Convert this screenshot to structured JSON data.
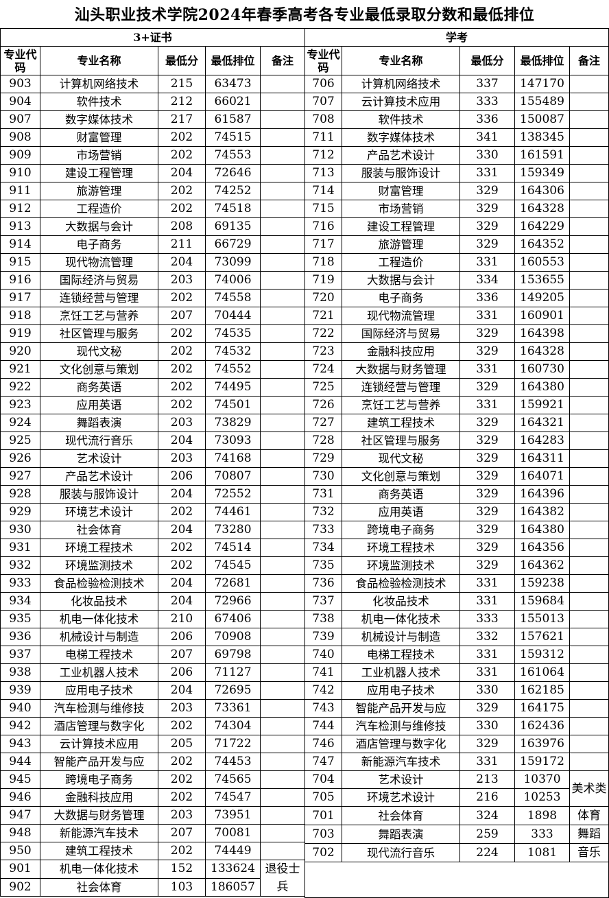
{
  "title": "汕头职业技术学院2024年春季高考各专业最低录取分数和最低排位",
  "columns": {
    "code": "专业代码",
    "name": "专业名称",
    "score": "最低分",
    "rank": "最低排位",
    "note": "备注"
  },
  "left": {
    "section": "3+证书",
    "rows": [
      {
        "code": "903",
        "name": "计算机网络技术",
        "score": "215",
        "rank": "63473"
      },
      {
        "code": "904",
        "name": "软件技术",
        "score": "212",
        "rank": "66021"
      },
      {
        "code": "907",
        "name": "数字媒体技术",
        "score": "217",
        "rank": "61587"
      },
      {
        "code": "908",
        "name": "财富管理",
        "score": "202",
        "rank": "74515"
      },
      {
        "code": "909",
        "name": "市场营销",
        "score": "202",
        "rank": "74553"
      },
      {
        "code": "910",
        "name": "建设工程管理",
        "score": "204",
        "rank": "72646"
      },
      {
        "code": "911",
        "name": "旅游管理",
        "score": "202",
        "rank": "74252"
      },
      {
        "code": "912",
        "name": "工程造价",
        "score": "202",
        "rank": "74518"
      },
      {
        "code": "913",
        "name": "大数据与会计",
        "score": "208",
        "rank": "69135"
      },
      {
        "code": "914",
        "name": "电子商务",
        "score": "211",
        "rank": "66729"
      },
      {
        "code": "915",
        "name": "现代物流管理",
        "score": "204",
        "rank": "73099"
      },
      {
        "code": "916",
        "name": "国际经济与贸易",
        "score": "203",
        "rank": "74006"
      },
      {
        "code": "917",
        "name": "连锁经营与管理",
        "score": "202",
        "rank": "74558"
      },
      {
        "code": "918",
        "name": "烹饪工艺与营养",
        "score": "207",
        "rank": "70444"
      },
      {
        "code": "919",
        "name": "社区管理与服务",
        "score": "202",
        "rank": "74535"
      },
      {
        "code": "920",
        "name": "现代文秘",
        "score": "202",
        "rank": "74532"
      },
      {
        "code": "921",
        "name": "文化创意与策划",
        "score": "202",
        "rank": "74552"
      },
      {
        "code": "922",
        "name": "商务英语",
        "score": "202",
        "rank": "74495"
      },
      {
        "code": "923",
        "name": "应用英语",
        "score": "202",
        "rank": "74501"
      },
      {
        "code": "924",
        "name": "舞蹈表演",
        "score": "203",
        "rank": "73829"
      },
      {
        "code": "925",
        "name": "现代流行音乐",
        "score": "204",
        "rank": "73093"
      },
      {
        "code": "926",
        "name": "艺术设计",
        "score": "203",
        "rank": "74168"
      },
      {
        "code": "927",
        "name": "产品艺术设计",
        "score": "206",
        "rank": "70807"
      },
      {
        "code": "928",
        "name": "服装与服饰设计",
        "score": "204",
        "rank": "72552"
      },
      {
        "code": "929",
        "name": "环境艺术设计",
        "score": "202",
        "rank": "74461"
      },
      {
        "code": "930",
        "name": "社会体育",
        "score": "204",
        "rank": "73280"
      },
      {
        "code": "931",
        "name": "环境工程技术",
        "score": "202",
        "rank": "74514"
      },
      {
        "code": "932",
        "name": "环境监测技术",
        "score": "202",
        "rank": "74545"
      },
      {
        "code": "933",
        "name": "食品检验检测技术",
        "score": "204",
        "rank": "72681"
      },
      {
        "code": "934",
        "name": "化妆品技术",
        "score": "204",
        "rank": "72966"
      },
      {
        "code": "935",
        "name": "机电一体化技术",
        "score": "210",
        "rank": "67406"
      },
      {
        "code": "936",
        "name": "机械设计与制造",
        "score": "206",
        "rank": "70908"
      },
      {
        "code": "937",
        "name": "电梯工程技术",
        "score": "207",
        "rank": "69798"
      },
      {
        "code": "938",
        "name": "工业机器人技术",
        "score": "206",
        "rank": "71127"
      },
      {
        "code": "939",
        "name": "应用电子技术",
        "score": "204",
        "rank": "72695"
      },
      {
        "code": "940",
        "name": "汽车检测与维修技",
        "score": "203",
        "rank": "73361"
      },
      {
        "code": "942",
        "name": "酒店管理与数字化",
        "score": "202",
        "rank": "74304"
      },
      {
        "code": "943",
        "name": "云计算技术应用",
        "score": "205",
        "rank": "71722"
      },
      {
        "code": "944",
        "name": "智能产品开发与应",
        "score": "202",
        "rank": "74453"
      },
      {
        "code": "945",
        "name": "跨境电子商务",
        "score": "202",
        "rank": "74565"
      },
      {
        "code": "946",
        "name": "金融科技应用",
        "score": "202",
        "rank": "74547"
      },
      {
        "code": "947",
        "name": "大数据与财务管理",
        "score": "203",
        "rank": "73951"
      },
      {
        "code": "948",
        "name": "新能源汽车技术",
        "score": "207",
        "rank": "70081"
      },
      {
        "code": "950",
        "name": "建筑工程技术",
        "score": "202",
        "rank": "74449"
      },
      {
        "code": "901",
        "name": "机电一体化技术",
        "score": "152",
        "rank": "133624",
        "note": "退役士兵",
        "note_span": 2
      },
      {
        "code": "902",
        "name": "社会体育",
        "score": "103",
        "rank": "186057"
      }
    ]
  },
  "right": {
    "section": "学考",
    "rows": [
      {
        "code": "706",
        "name": "计算机网络技术",
        "score": "337",
        "rank": "147170"
      },
      {
        "code": "707",
        "name": "云计算技术应用",
        "score": "333",
        "rank": "155489"
      },
      {
        "code": "708",
        "name": "软件技术",
        "score": "336",
        "rank": "150087"
      },
      {
        "code": "711",
        "name": "数字媒体技术",
        "score": "341",
        "rank": "138345"
      },
      {
        "code": "712",
        "name": "产品艺术设计",
        "score": "330",
        "rank": "161591"
      },
      {
        "code": "713",
        "name": "服装与服饰设计",
        "score": "331",
        "rank": "159349"
      },
      {
        "code": "714",
        "name": "财富管理",
        "score": "329",
        "rank": "164306"
      },
      {
        "code": "715",
        "name": "市场营销",
        "score": "329",
        "rank": "164328"
      },
      {
        "code": "716",
        "name": "建设工程管理",
        "score": "329",
        "rank": "164229"
      },
      {
        "code": "717",
        "name": "旅游管理",
        "score": "329",
        "rank": "164352"
      },
      {
        "code": "718",
        "name": "工程造价",
        "score": "331",
        "rank": "160553"
      },
      {
        "code": "719",
        "name": "大数据与会计",
        "score": "334",
        "rank": "153655"
      },
      {
        "code": "720",
        "name": "电子商务",
        "score": "336",
        "rank": "149205"
      },
      {
        "code": "721",
        "name": "现代物流管理",
        "score": "331",
        "rank": "160901"
      },
      {
        "code": "722",
        "name": "国际经济与贸易",
        "score": "329",
        "rank": "164398"
      },
      {
        "code": "723",
        "name": "金融科技应用",
        "score": "329",
        "rank": "164328"
      },
      {
        "code": "724",
        "name": "大数据与财务管理",
        "score": "331",
        "rank": "160730"
      },
      {
        "code": "725",
        "name": "连锁经营与管理",
        "score": "329",
        "rank": "164380"
      },
      {
        "code": "726",
        "name": "烹饪工艺与营养",
        "score": "331",
        "rank": "159921"
      },
      {
        "code": "727",
        "name": "建筑工程技术",
        "score": "329",
        "rank": "164321"
      },
      {
        "code": "728",
        "name": "社区管理与服务",
        "score": "329",
        "rank": "164283"
      },
      {
        "code": "729",
        "name": "现代文秘",
        "score": "329",
        "rank": "164311"
      },
      {
        "code": "730",
        "name": "文化创意与策划",
        "score": "329",
        "rank": "164071"
      },
      {
        "code": "731",
        "name": "商务英语",
        "score": "329",
        "rank": "164396"
      },
      {
        "code": "732",
        "name": "应用英语",
        "score": "329",
        "rank": "164382"
      },
      {
        "code": "733",
        "name": "跨境电子商务",
        "score": "329",
        "rank": "164380"
      },
      {
        "code": "734",
        "name": "环境工程技术",
        "score": "329",
        "rank": "164356"
      },
      {
        "code": "735",
        "name": "环境监测技术",
        "score": "329",
        "rank": "164362"
      },
      {
        "code": "736",
        "name": "食品检验检测技术",
        "score": "331",
        "rank": "159238"
      },
      {
        "code": "737",
        "name": "化妆品技术",
        "score": "331",
        "rank": "159684"
      },
      {
        "code": "738",
        "name": "机电一体化技术",
        "score": "333",
        "rank": "155013"
      },
      {
        "code": "739",
        "name": "机械设计与制造",
        "score": "332",
        "rank": "157621"
      },
      {
        "code": "740",
        "name": "电梯工程技术",
        "score": "331",
        "rank": "159312"
      },
      {
        "code": "741",
        "name": "工业机器人技术",
        "score": "331",
        "rank": "161064"
      },
      {
        "code": "742",
        "name": "应用电子技术",
        "score": "330",
        "rank": "162185"
      },
      {
        "code": "743",
        "name": "智能产品开发与应",
        "score": "329",
        "rank": "164175"
      },
      {
        "code": "744",
        "name": "汽车检测与维修技",
        "score": "330",
        "rank": "162436"
      },
      {
        "code": "746",
        "name": "酒店管理与数字化",
        "score": "329",
        "rank": "163976"
      },
      {
        "code": "747",
        "name": "新能源汽车技术",
        "score": "331",
        "rank": "159172"
      },
      {
        "code": "704",
        "name": "艺术设计",
        "score": "213",
        "rank": "10370",
        "note": "美术类",
        "note_span": 2
      },
      {
        "code": "705",
        "name": "环境艺术设计",
        "score": "216",
        "rank": "10253"
      },
      {
        "code": "701",
        "name": "社会体育",
        "score": "324",
        "rank": "1898",
        "note": "体育"
      },
      {
        "code": "703",
        "name": "舞蹈表演",
        "score": "259",
        "rank": "333",
        "note": "舞蹈"
      },
      {
        "code": "702",
        "name": "现代流行音乐",
        "score": "224",
        "rank": "1081",
        "note": "音乐"
      }
    ]
  }
}
